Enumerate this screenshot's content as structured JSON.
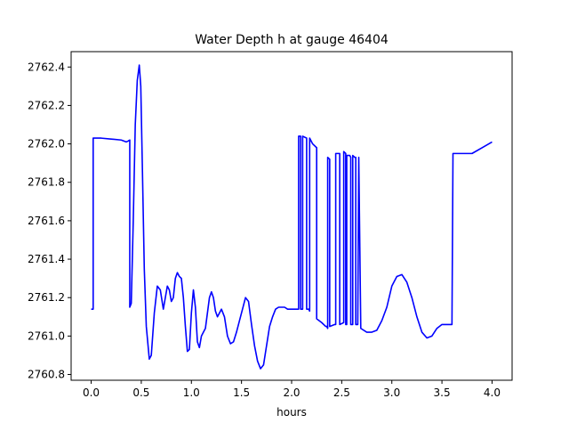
{
  "chart_data": {
    "type": "line",
    "title": "Water Depth h at gauge 46404",
    "xlabel": "hours",
    "ylabel": "",
    "xlim": [
      -0.2,
      4.2
    ],
    "ylim": [
      2760.77,
      2762.48
    ],
    "grid": false,
    "legend": "none",
    "xticks": [
      0.0,
      0.5,
      1.0,
      1.5,
      2.0,
      2.5,
      3.0,
      3.5,
      4.0
    ],
    "xtick_labels": [
      "0.0",
      "0.5",
      "1.0",
      "1.5",
      "2.0",
      "2.5",
      "3.0",
      "3.5",
      "4.0"
    ],
    "yticks": [
      2760.8,
      2761.0,
      2761.2,
      2761.4,
      2761.6,
      2761.8,
      2762.0,
      2762.2,
      2762.4
    ],
    "ytick_labels": [
      "2760.8",
      "2761.0",
      "2761.2",
      "2761.4",
      "2761.6",
      "2761.8",
      "2762.0",
      "2762.2",
      "2762.4"
    ],
    "series": [
      {
        "color": "#0000ff",
        "x": [
          0.0,
          0.02,
          0.02,
          0.05,
          0.1,
          0.2,
          0.3,
          0.35,
          0.37,
          0.385,
          0.385,
          0.4,
          0.42,
          0.44,
          0.46,
          0.48,
          0.495,
          0.51,
          0.53,
          0.55,
          0.58,
          0.6,
          0.63,
          0.66,
          0.69,
          0.72,
          0.74,
          0.76,
          0.78,
          0.8,
          0.82,
          0.84,
          0.86,
          0.88,
          0.9,
          0.92,
          0.94,
          0.96,
          0.98,
          1.0,
          1.02,
          1.04,
          1.06,
          1.08,
          1.1,
          1.12,
          1.14,
          1.16,
          1.18,
          1.2,
          1.22,
          1.24,
          1.26,
          1.28,
          1.3,
          1.33,
          1.36,
          1.39,
          1.42,
          1.45,
          1.48,
          1.51,
          1.54,
          1.57,
          1.6,
          1.63,
          1.66,
          1.69,
          1.72,
          1.75,
          1.78,
          1.81,
          1.84,
          1.87,
          1.9,
          1.93,
          1.96,
          1.99,
          2.02,
          2.05,
          2.07,
          2.07,
          2.09,
          2.09,
          2.11,
          2.11,
          2.15,
          2.15,
          2.17,
          2.18,
          2.18,
          2.21,
          2.25,
          2.25,
          2.3,
          2.34,
          2.35,
          2.36,
          2.36,
          2.38,
          2.38,
          2.43,
          2.44,
          2.44,
          2.47,
          2.48,
          2.48,
          2.52,
          2.52,
          2.54,
          2.54,
          2.55,
          2.55,
          2.58,
          2.59,
          2.59,
          2.61,
          2.61,
          2.63,
          2.64,
          2.64,
          2.66,
          2.67,
          2.67,
          2.69,
          2.69,
          2.75,
          2.8,
          2.85,
          2.9,
          2.95,
          3.0,
          3.05,
          3.1,
          3.15,
          3.2,
          3.25,
          3.3,
          3.35,
          3.4,
          3.45,
          3.5,
          3.55,
          3.6,
          3.61,
          3.61,
          3.7,
          3.8,
          3.9,
          4.0
        ],
        "y": [
          2761.14,
          2761.14,
          2762.03,
          2762.03,
          2762.03,
          2762.025,
          2762.02,
          2762.01,
          2762.015,
          2762.02,
          2761.15,
          2761.17,
          2761.6,
          2762.1,
          2762.33,
          2762.41,
          2762.3,
          2761.9,
          2761.35,
          2761.05,
          2760.88,
          2760.9,
          2761.12,
          2761.26,
          2761.24,
          2761.14,
          2761.2,
          2761.26,
          2761.24,
          2761.18,
          2761.2,
          2761.3,
          2761.33,
          2761.31,
          2761.3,
          2761.2,
          2761.05,
          2760.92,
          2760.93,
          2761.12,
          2761.24,
          2761.15,
          2760.97,
          2760.94,
          2761.0,
          2761.02,
          2761.04,
          2761.12,
          2761.2,
          2761.23,
          2761.2,
          2761.13,
          2761.1,
          2761.12,
          2761.14,
          2761.1,
          2761.0,
          2760.96,
          2760.97,
          2761.02,
          2761.08,
          2761.14,
          2761.2,
          2761.18,
          2761.06,
          2760.95,
          2760.87,
          2760.83,
          2760.85,
          2760.95,
          2761.05,
          2761.1,
          2761.14,
          2761.15,
          2761.15,
          2761.15,
          2761.14,
          2761.14,
          2761.14,
          2761.14,
          2761.14,
          2762.04,
          2762.04,
          2761.14,
          2761.14,
          2762.04,
          2762.03,
          2761.14,
          2761.14,
          2761.13,
          2762.03,
          2762.0,
          2761.98,
          2761.09,
          2761.07,
          2761.05,
          2761.05,
          2761.04,
          2761.93,
          2761.92,
          2761.05,
          2761.06,
          2761.06,
          2761.95,
          2761.95,
          2761.95,
          2761.06,
          2761.07,
          2761.96,
          2761.95,
          2761.06,
          2761.06,
          2761.94,
          2761.94,
          2761.93,
          2761.06,
          2761.06,
          2761.94,
          2761.93,
          2761.93,
          2761.06,
          2761.06,
          2761.93,
          2761.93,
          2761.05,
          2761.04,
          2761.02,
          2761.02,
          2761.03,
          2761.08,
          2761.15,
          2761.26,
          2761.31,
          2761.32,
          2761.28,
          2761.2,
          2761.1,
          2761.02,
          2760.99,
          2761.0,
          2761.04,
          2761.06,
          2761.06,
          2761.06,
          2761.94,
          2761.95,
          2761.95,
          2761.95,
          2761.98,
          2762.01
        ]
      }
    ]
  }
}
